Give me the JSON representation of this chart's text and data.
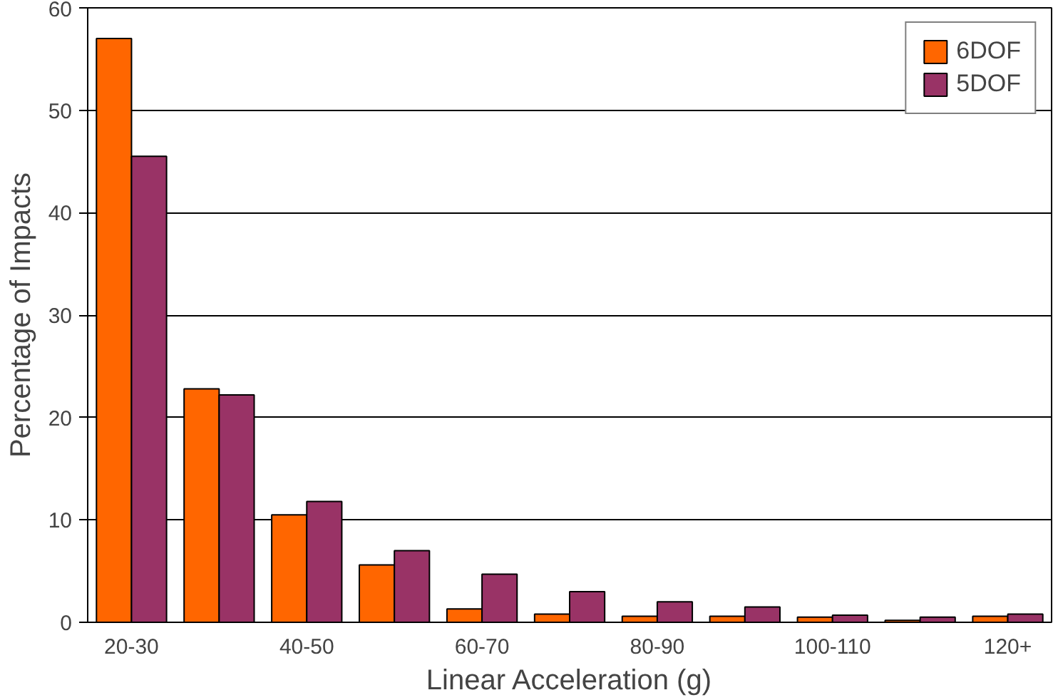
{
  "chart_data": {
    "type": "bar",
    "xlabel": "Linear Acceleration (g)",
    "ylabel": "Percentage of Impacts",
    "categories": [
      "20-30",
      null,
      "40-50",
      null,
      "60-70",
      null,
      "80-90",
      null,
      "100-110",
      null,
      "120+"
    ],
    "series": [
      {
        "name": "6DOF",
        "color": "#ff6600",
        "values": [
          57,
          22.8,
          10.5,
          5.6,
          1.3,
          0.8,
          0.6,
          0.6,
          0.5,
          0.2,
          0.6
        ]
      },
      {
        "name": "5DOF",
        "color": "#993366",
        "values": [
          45.5,
          22.2,
          11.8,
          7.0,
          4.7,
          3.0,
          2.0,
          1.5,
          0.7,
          0.5,
          0.8
        ]
      }
    ],
    "ylim": [
      0,
      60
    ],
    "yticks": [
      0,
      10,
      20,
      30,
      40,
      50,
      60
    ],
    "grid": "y",
    "legend": "top right"
  }
}
